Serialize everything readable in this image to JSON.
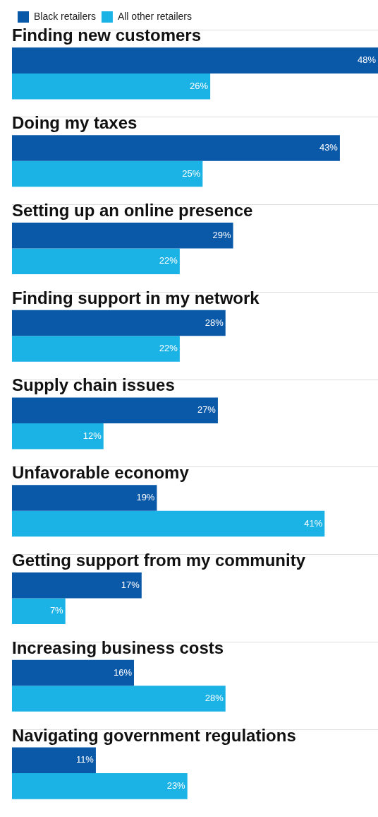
{
  "chart_data": {
    "type": "bar",
    "orientation": "horizontal",
    "categories": [
      "Finding new customers",
      "Doing my taxes",
      "Setting up an online presence",
      "Finding support in my network",
      "Supply chain issues",
      "Unfavorable economy",
      "Getting support from my community",
      "Increasing business costs",
      "Navigating government regulations"
    ],
    "series": [
      {
        "name": "Black retailers",
        "color": "#0a58a8",
        "values": [
          48,
          43,
          29,
          28,
          27,
          19,
          17,
          16,
          11
        ],
        "value_labels": [
          "48%",
          "43%",
          "29%",
          "28%",
          "27%",
          "19%",
          "17%",
          "16%",
          "11%"
        ]
      },
      {
        "name": "All other retailers",
        "color": "#1bb3e6",
        "values": [
          26,
          25,
          22,
          22,
          12,
          41,
          7,
          28,
          23
        ],
        "value_labels": [
          "26%",
          "25%",
          "22%",
          "22%",
          "12%",
          "41%",
          "7%",
          "28%",
          "23%"
        ]
      }
    ],
    "legend": "top left",
    "grid": "y",
    "tick_labels": "y"
  }
}
